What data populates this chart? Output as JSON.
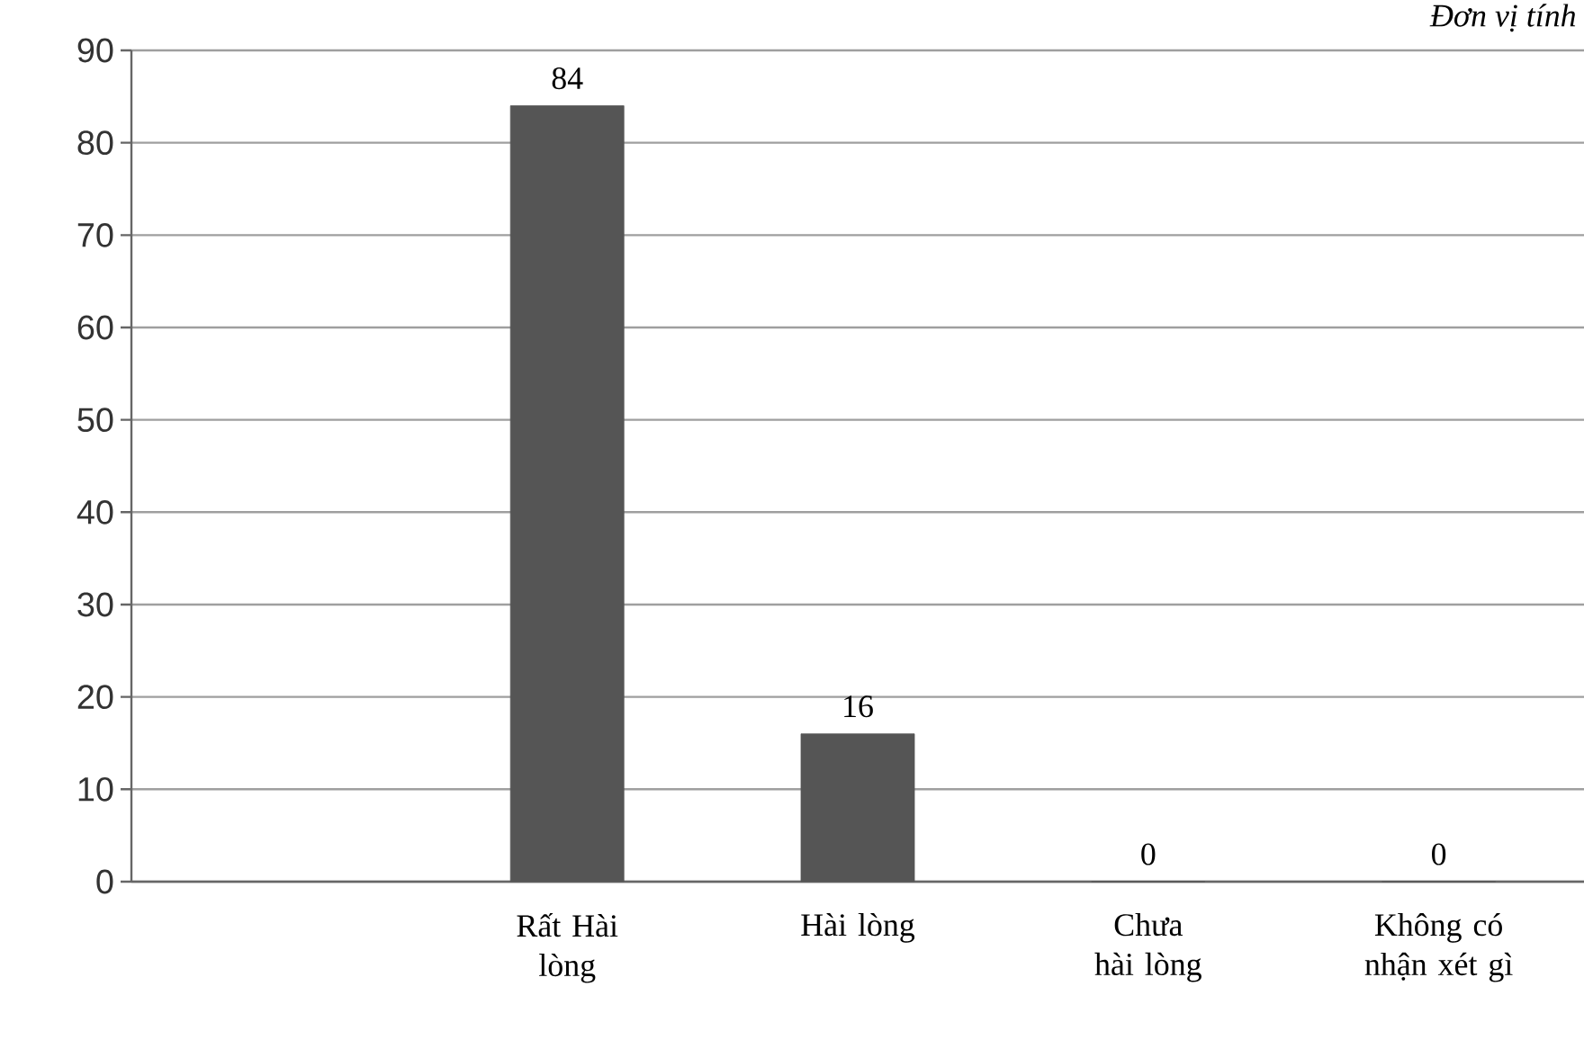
{
  "chart_data": {
    "type": "bar",
    "categories": [
      null,
      "Rất Hài lòng",
      "Hài lòng",
      "Chưa hài lòng",
      "Không có nhận xét gì"
    ],
    "values": [
      null,
      84,
      16,
      0,
      0
    ],
    "color": "#555555",
    "ylim": [
      0,
      90
    ],
    "yticks": [
      0,
      10,
      20,
      30,
      40,
      50,
      60,
      70,
      80,
      90
    ],
    "grid": "y",
    "data_labels": true,
    "annotations": [
      "Đơn vị tính"
    ]
  }
}
